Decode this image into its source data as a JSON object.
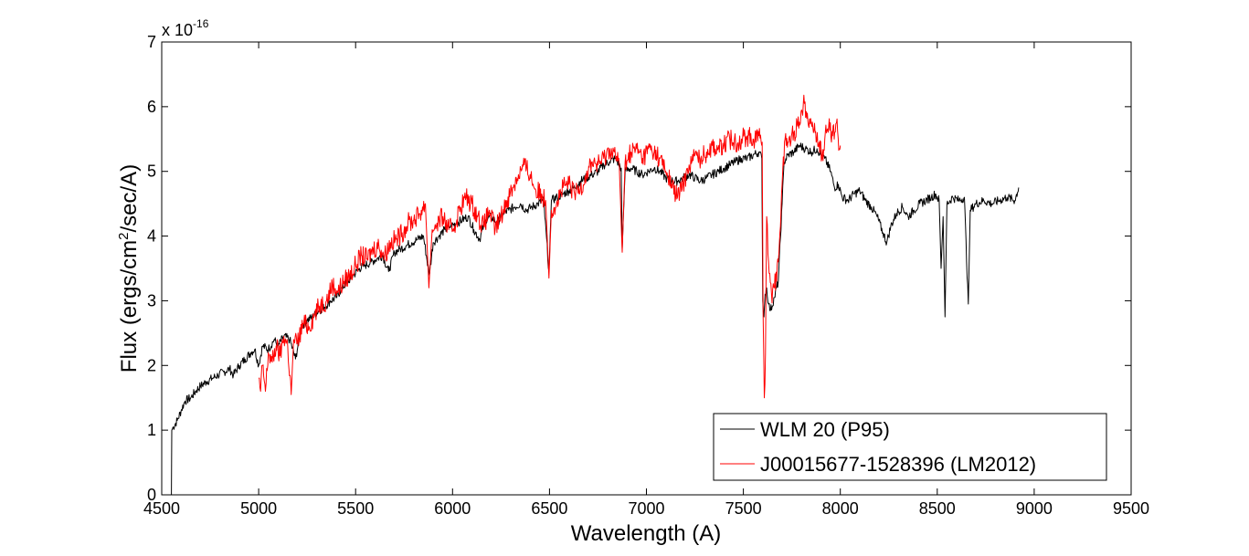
{
  "chart_data": {
    "type": "line",
    "xlabel": "Wavelength (A)",
    "ylabel_parts": [
      "Flux (ergs/cm",
      "2",
      "/sec/A)"
    ],
    "xlim": [
      4500,
      9500
    ],
    "ylim": [
      0,
      7
    ],
    "xticks": [
      4500,
      5000,
      5500,
      6000,
      6500,
      7000,
      7500,
      8000,
      8500,
      9000,
      9500
    ],
    "yticks": [
      0,
      1,
      2,
      3,
      4,
      5,
      6,
      7
    ],
    "xtick_labels": [
      "4500",
      "5000",
      "5500",
      "6000",
      "6500",
      "7000",
      "7500",
      "8000",
      "8500",
      "9000",
      "9500"
    ],
    "ytick_labels": [
      "0",
      "1",
      "2",
      "3",
      "4",
      "5",
      "6",
      "7"
    ],
    "y_multiplier": {
      "base": "x 10",
      "exponent": "-16"
    },
    "grid": false,
    "legend_position": "bottom-right",
    "series": [
      {
        "name": "WLM 20 (P95)",
        "color": "#000000",
        "points": [
          [
            4550,
            0.0
          ],
          [
            4552,
            1.0
          ],
          [
            4560,
            1.05
          ],
          [
            4580,
            1.15
          ],
          [
            4600,
            1.3
          ],
          [
            4620,
            1.45
          ],
          [
            4650,
            1.5
          ],
          [
            4680,
            1.62
          ],
          [
            4700,
            1.68
          ],
          [
            4730,
            1.75
          ],
          [
            4760,
            1.8
          ],
          [
            4790,
            1.85
          ],
          [
            4820,
            1.9
          ],
          [
            4850,
            1.95
          ],
          [
            4870,
            1.85
          ],
          [
            4900,
            2.0
          ],
          [
            4930,
            2.1
          ],
          [
            4960,
            2.2
          ],
          [
            4980,
            2.25
          ],
          [
            5000,
            2.0
          ],
          [
            5020,
            2.3
          ],
          [
            5050,
            2.25
          ],
          [
            5080,
            2.4
          ],
          [
            5100,
            2.3
          ],
          [
            5130,
            2.45
          ],
          [
            5160,
            2.4
          ],
          [
            5190,
            2.1
          ],
          [
            5220,
            2.6
          ],
          [
            5250,
            2.7
          ],
          [
            5280,
            2.75
          ],
          [
            5310,
            2.85
          ],
          [
            5340,
            2.9
          ],
          [
            5370,
            3.0
          ],
          [
            5400,
            3.05
          ],
          [
            5430,
            3.2
          ],
          [
            5460,
            3.3
          ],
          [
            5490,
            3.4
          ],
          [
            5520,
            3.5
          ],
          [
            5550,
            3.55
          ],
          [
            5580,
            3.6
          ],
          [
            5610,
            3.65
          ],
          [
            5640,
            3.7
          ],
          [
            5670,
            3.45
          ],
          [
            5700,
            3.75
          ],
          [
            5730,
            3.8
          ],
          [
            5760,
            3.85
          ],
          [
            5790,
            3.9
          ],
          [
            5820,
            3.95
          ],
          [
            5850,
            4.0
          ],
          [
            5880,
            3.4
          ],
          [
            5900,
            3.9
          ],
          [
            5930,
            4.0
          ],
          [
            5960,
            4.1
          ],
          [
            5990,
            4.15
          ],
          [
            6020,
            4.2
          ],
          [
            6050,
            4.25
          ],
          [
            6080,
            4.3
          ],
          [
            6110,
            4.1
          ],
          [
            6140,
            3.95
          ],
          [
            6170,
            4.25
          ],
          [
            6200,
            4.3
          ],
          [
            6230,
            4.2
          ],
          [
            6260,
            4.35
          ],
          [
            6290,
            4.4
          ],
          [
            6320,
            4.45
          ],
          [
            6350,
            4.5
          ],
          [
            6380,
            4.4
          ],
          [
            6410,
            4.45
          ],
          [
            6440,
            4.5
          ],
          [
            6470,
            4.55
          ],
          [
            6497,
            3.45
          ],
          [
            6510,
            4.55
          ],
          [
            6540,
            4.6
          ],
          [
            6570,
            4.65
          ],
          [
            6600,
            4.7
          ],
          [
            6630,
            4.75
          ],
          [
            6660,
            4.85
          ],
          [
            6690,
            4.9
          ],
          [
            6720,
            4.95
          ],
          [
            6750,
            5.0
          ],
          [
            6780,
            5.1
          ],
          [
            6810,
            5.15
          ],
          [
            6840,
            5.2
          ],
          [
            6870,
            5.05
          ],
          [
            6875,
            3.8
          ],
          [
            6890,
            5.0
          ],
          [
            6920,
            5.05
          ],
          [
            6950,
            5.0
          ],
          [
            6980,
            4.95
          ],
          [
            7010,
            5.0
          ],
          [
            7040,
            5.05
          ],
          [
            7070,
            5.0
          ],
          [
            7100,
            4.9
          ],
          [
            7130,
            4.85
          ],
          [
            7160,
            4.85
          ],
          [
            7190,
            4.9
          ],
          [
            7220,
            4.95
          ],
          [
            7250,
            4.9
          ],
          [
            7280,
            4.85
          ],
          [
            7310,
            4.9
          ],
          [
            7340,
            4.95
          ],
          [
            7370,
            5.0
          ],
          [
            7400,
            5.05
          ],
          [
            7430,
            5.1
          ],
          [
            7460,
            5.15
          ],
          [
            7490,
            5.2
          ],
          [
            7520,
            5.2
          ],
          [
            7550,
            5.25
          ],
          [
            7580,
            5.3
          ],
          [
            7595,
            5.2
          ],
          [
            7600,
            3.0
          ],
          [
            7606,
            2.75
          ],
          [
            7612,
            3.1
          ],
          [
            7620,
            3.2
          ],
          [
            7630,
            2.95
          ],
          [
            7640,
            2.85
          ],
          [
            7660,
            3.05
          ],
          [
            7680,
            3.3
          ],
          [
            7700,
            4.5
          ],
          [
            7710,
            5.15
          ],
          [
            7730,
            5.25
          ],
          [
            7760,
            5.3
          ],
          [
            7790,
            5.4
          ],
          [
            7820,
            5.35
          ],
          [
            7850,
            5.3
          ],
          [
            7880,
            5.35
          ],
          [
            7900,
            5.25
          ],
          [
            7920,
            5.2
          ],
          [
            7950,
            5.0
          ],
          [
            7970,
            4.75
          ],
          [
            7990,
            4.8
          ],
          [
            8010,
            4.6
          ],
          [
            8040,
            4.55
          ],
          [
            8070,
            4.65
          ],
          [
            8100,
            4.7
          ],
          [
            8130,
            4.55
          ],
          [
            8160,
            4.45
          ],
          [
            8190,
            4.3
          ],
          [
            8220,
            4.05
          ],
          [
            8240,
            3.9
          ],
          [
            8260,
            4.15
          ],
          [
            8290,
            4.35
          ],
          [
            8320,
            4.45
          ],
          [
            8350,
            4.3
          ],
          [
            8380,
            4.4
          ],
          [
            8410,
            4.5
          ],
          [
            8440,
            4.55
          ],
          [
            8470,
            4.6
          ],
          [
            8490,
            4.65
          ],
          [
            8510,
            4.55
          ],
          [
            8520,
            3.5
          ],
          [
            8530,
            4.3
          ],
          [
            8540,
            2.75
          ],
          [
            8550,
            4.5
          ],
          [
            8580,
            4.6
          ],
          [
            8610,
            4.55
          ],
          [
            8640,
            4.6
          ],
          [
            8660,
            2.95
          ],
          [
            8670,
            4.4
          ],
          [
            8700,
            4.5
          ],
          [
            8740,
            4.55
          ],
          [
            8780,
            4.5
          ],
          [
            8820,
            4.55
          ],
          [
            8860,
            4.6
          ],
          [
            8900,
            4.55
          ],
          [
            8920,
            4.75
          ]
        ]
      },
      {
        "name": "J00015677-1528396 (LM2012)",
        "color": "#ff0000",
        "points": [
          [
            5000,
            1.8
          ],
          [
            5010,
            1.6
          ],
          [
            5020,
            2.0
          ],
          [
            5035,
            1.6
          ],
          [
            5050,
            2.2
          ],
          [
            5070,
            2.05
          ],
          [
            5090,
            2.3
          ],
          [
            5110,
            2.15
          ],
          [
            5130,
            2.45
          ],
          [
            5150,
            2.3
          ],
          [
            5168,
            1.55
          ],
          [
            5180,
            2.4
          ],
          [
            5200,
            2.35
          ],
          [
            5230,
            2.65
          ],
          [
            5260,
            2.6
          ],
          [
            5290,
            2.8
          ],
          [
            5320,
            2.95
          ],
          [
            5350,
            3.0
          ],
          [
            5380,
            3.25
          ],
          [
            5410,
            3.15
          ],
          [
            5440,
            3.3
          ],
          [
            5470,
            3.4
          ],
          [
            5500,
            3.55
          ],
          [
            5530,
            3.7
          ],
          [
            5560,
            3.65
          ],
          [
            5590,
            3.8
          ],
          [
            5620,
            3.85
          ],
          [
            5650,
            3.7
          ],
          [
            5680,
            3.9
          ],
          [
            5710,
            3.95
          ],
          [
            5740,
            4.05
          ],
          [
            5770,
            4.2
          ],
          [
            5800,
            4.25
          ],
          [
            5830,
            4.35
          ],
          [
            5860,
            4.5
          ],
          [
            5878,
            3.2
          ],
          [
            5895,
            4.1
          ],
          [
            5920,
            4.2
          ],
          [
            5950,
            4.3
          ],
          [
            5980,
            4.1
          ],
          [
            6010,
            4.15
          ],
          [
            6040,
            4.45
          ],
          [
            6070,
            4.6
          ],
          [
            6100,
            4.5
          ],
          [
            6130,
            4.3
          ],
          [
            6160,
            4.15
          ],
          [
            6190,
            4.4
          ],
          [
            6220,
            4.1
          ],
          [
            6250,
            4.3
          ],
          [
            6280,
            4.55
          ],
          [
            6310,
            4.75
          ],
          [
            6340,
            4.95
          ],
          [
            6370,
            5.1
          ],
          [
            6400,
            4.95
          ],
          [
            6430,
            4.7
          ],
          [
            6460,
            4.65
          ],
          [
            6480,
            4.55
          ],
          [
            6497,
            3.35
          ],
          [
            6510,
            4.4
          ],
          [
            6540,
            4.55
          ],
          [
            6570,
            4.75
          ],
          [
            6600,
            4.8
          ],
          [
            6630,
            4.65
          ],
          [
            6660,
            4.75
          ],
          [
            6690,
            4.95
          ],
          [
            6720,
            5.15
          ],
          [
            6750,
            5.1
          ],
          [
            6780,
            5.2
          ],
          [
            6810,
            5.35
          ],
          [
            6840,
            5.25
          ],
          [
            6860,
            5.1
          ],
          [
            6875,
            3.75
          ],
          [
            6890,
            5.15
          ],
          [
            6920,
            5.3
          ],
          [
            6950,
            5.35
          ],
          [
            6980,
            5.2
          ],
          [
            7010,
            5.35
          ],
          [
            7040,
            5.3
          ],
          [
            7070,
            5.2
          ],
          [
            7100,
            5.0
          ],
          [
            7130,
            4.8
          ],
          [
            7160,
            4.6
          ],
          [
            7190,
            4.8
          ],
          [
            7220,
            5.1
          ],
          [
            7250,
            5.25
          ],
          [
            7280,
            5.2
          ],
          [
            7310,
            5.3
          ],
          [
            7340,
            5.4
          ],
          [
            7370,
            5.35
          ],
          [
            7400,
            5.4
          ],
          [
            7430,
            5.5
          ],
          [
            7460,
            5.45
          ],
          [
            7490,
            5.5
          ],
          [
            7520,
            5.55
          ],
          [
            7550,
            5.5
          ],
          [
            7580,
            5.55
          ],
          [
            7597,
            5.45
          ],
          [
            7602,
            2.8
          ],
          [
            7608,
            1.5
          ],
          [
            7614,
            2.2
          ],
          [
            7620,
            4.3
          ],
          [
            7630,
            3.6
          ],
          [
            7645,
            3.1
          ],
          [
            7660,
            3.2
          ],
          [
            7680,
            3.6
          ],
          [
            7700,
            4.8
          ],
          [
            7715,
            5.5
          ],
          [
            7730,
            5.45
          ],
          [
            7760,
            5.6
          ],
          [
            7780,
            5.7
          ],
          [
            7800,
            5.95
          ],
          [
            7815,
            6.05
          ],
          [
            7830,
            5.9
          ],
          [
            7850,
            5.75
          ],
          [
            7870,
            5.6
          ],
          [
            7890,
            5.45
          ],
          [
            7905,
            5.2
          ],
          [
            7920,
            5.5
          ],
          [
            7940,
            5.7
          ],
          [
            7960,
            5.55
          ],
          [
            7980,
            5.75
          ],
          [
            7995,
            5.35
          ],
          [
            8000,
            5.4
          ]
        ]
      }
    ]
  }
}
